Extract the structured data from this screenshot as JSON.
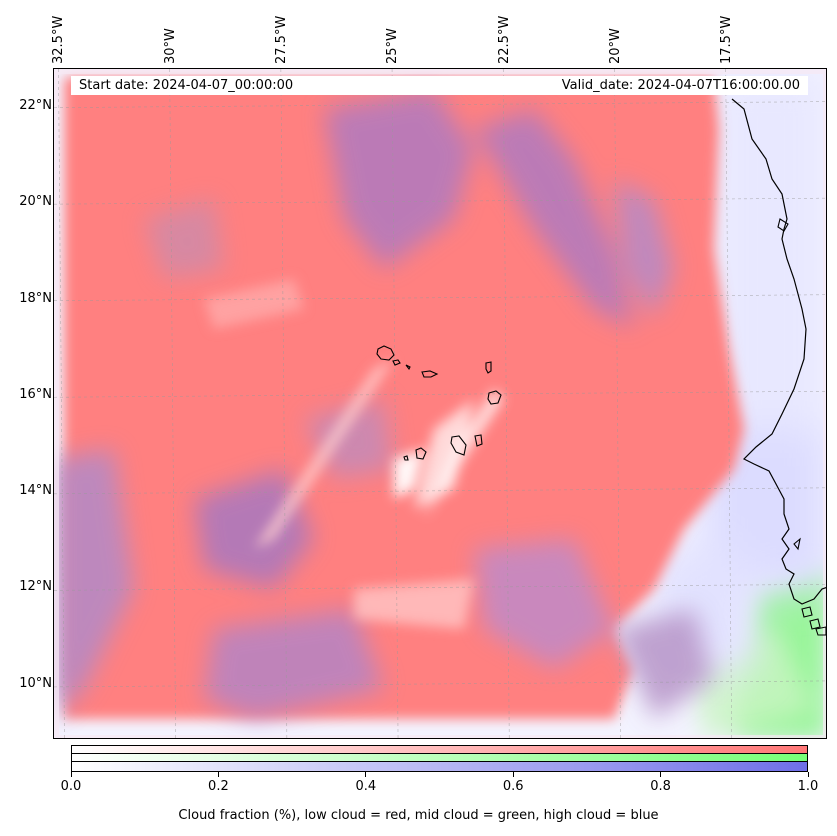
{
  "header": {
    "start_date": "Start date: 2024-04-07_00:00:00",
    "valid_date": "Valid_date: 2024-04-07T16:00:00.00"
  },
  "map": {
    "lon_ticks": [
      "32.5°W",
      "30°W",
      "27.5°W",
      "25°W",
      "22.5°W",
      "20°W",
      "17.5°W"
    ],
    "lat_ticks": [
      "22°N",
      "20°N",
      "18°N",
      "16°N",
      "14°N",
      "12°N",
      "10°N"
    ],
    "lon_values": [
      -32.5,
      -30,
      -27.5,
      -25,
      -22.5,
      -20,
      -17.5
    ],
    "lat_values": [
      22,
      20,
      18,
      16,
      14,
      12,
      10
    ],
    "extent": {
      "lon": [
        -32.6,
        -15.2
      ],
      "lat": [
        8.9,
        22.8
      ]
    },
    "gridlines": "dashed",
    "coastline": "black",
    "colors": {
      "low_cloud": "#ff7777",
      "mid_cloud": "#77ff77",
      "high_cloud": "#6f6fe8"
    }
  },
  "colorbar": {
    "tick_labels": [
      "0.0",
      "0.2",
      "0.4",
      "0.6",
      "0.8",
      "1.0"
    ],
    "tick_values": [
      0.0,
      0.2,
      0.4,
      0.6,
      0.8,
      1.0
    ],
    "caption": "Cloud fraction (%), low cloud = red, mid cloud = green, high cloud = blue"
  }
}
